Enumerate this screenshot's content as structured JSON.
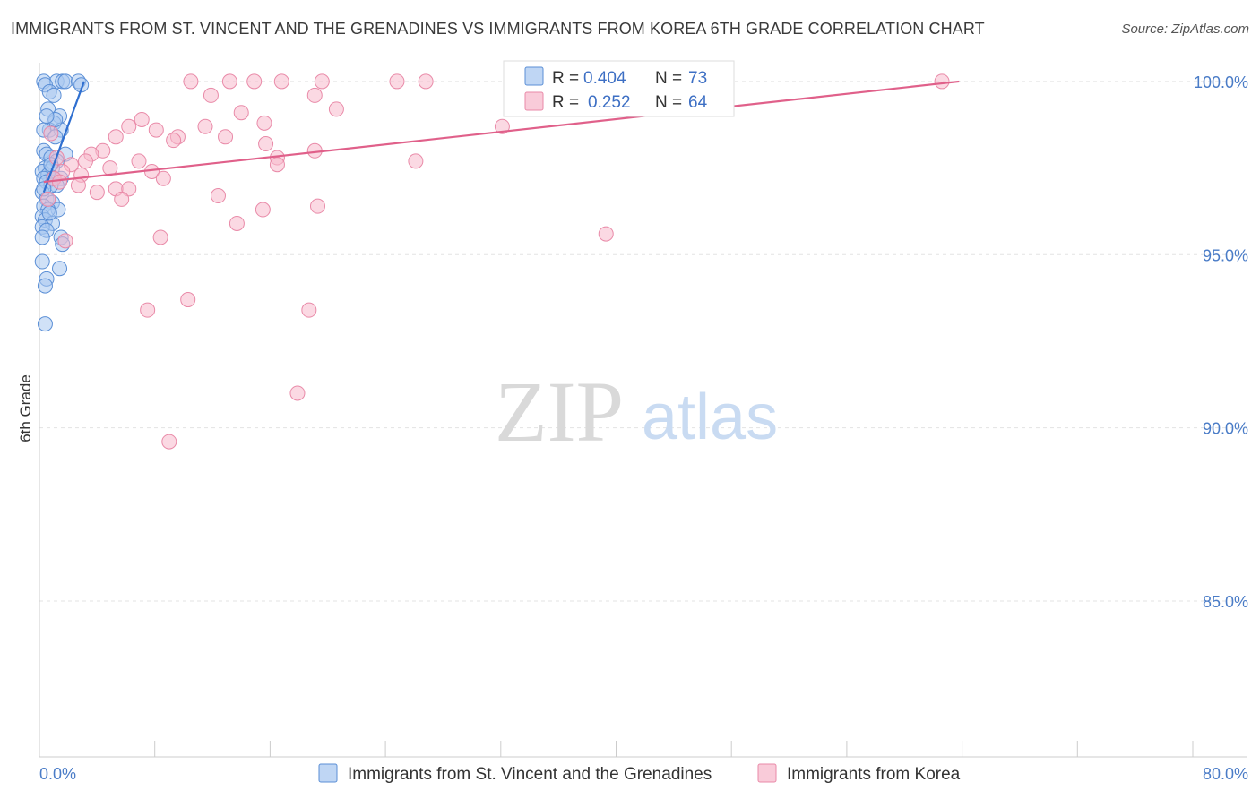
{
  "header": {
    "title": "IMMIGRANTS FROM ST. VINCENT AND THE GRENADINES VS IMMIGRANTS FROM KOREA 6TH GRADE CORRELATION CHART",
    "source": "Source: ZipAtlas.com"
  },
  "watermark": {
    "zip": "ZIP",
    "atlas": "atlas"
  },
  "colors": {
    "blue_fill": "#a9c8f0",
    "blue_stroke": "#5b8fd6",
    "blue_line": "#2f6fd0",
    "pink_fill": "#f7b9cc",
    "pink_stroke": "#e98aa8",
    "pink_line": "#e0608a",
    "grid": "#e3e3e3",
    "axis_text": "#4a7cc7"
  },
  "stats": {
    "blue": {
      "r_label": "R =",
      "r_value": "0.404",
      "n_label": "N =",
      "n_value": "73"
    },
    "pink": {
      "r_label": "R =",
      "r_value": "0.252",
      "n_label": "N =",
      "n_value": "64"
    }
  },
  "chart_data": {
    "type": "scatter",
    "title": "IMMIGRANTS FROM ST. VINCENT AND THE GRENADINES VS IMMIGRANTS FROM KOREA 6TH GRADE CORRELATION CHART",
    "xlabel": "",
    "ylabel": "6th Grade",
    "xlim": [
      0,
      80
    ],
    "ylim": [
      80.5,
      100.8
    ],
    "x_tick_labels": [
      "0.0%",
      "80.0%"
    ],
    "y_ticks": [
      85,
      90,
      95,
      100
    ],
    "y_tick_labels": [
      "85.0%",
      "90.0%",
      "95.0%",
      "100.0%"
    ],
    "grid": true,
    "legend_position": "bottom-center",
    "series": [
      {
        "name": "Immigrants from St. Vincent and the Grenadines",
        "color": "blue",
        "trend": {
          "x": [
            0.3,
            3.1
          ],
          "y": [
            96.8,
            100.0
          ]
        },
        "points": [
          [
            0.3,
            100
          ],
          [
            1.2,
            100
          ],
          [
            1.6,
            100
          ],
          [
            1.8,
            100
          ],
          [
            2.7,
            100
          ],
          [
            2.9,
            99.9
          ],
          [
            0.4,
            99.9
          ],
          [
            0.7,
            99.7
          ],
          [
            1.0,
            99.6
          ],
          [
            0.6,
            99.2
          ],
          [
            1.4,
            99.0
          ],
          [
            1.0,
            98.8
          ],
          [
            0.7,
            98.6
          ],
          [
            0.3,
            98.6
          ],
          [
            1.5,
            98.6
          ],
          [
            1.1,
            98.4
          ],
          [
            0.3,
            98.0
          ],
          [
            0.5,
            97.9
          ],
          [
            1.8,
            97.9
          ],
          [
            0.8,
            97.8
          ],
          [
            1.2,
            97.7
          ],
          [
            0.4,
            97.5
          ],
          [
            0.2,
            97.4
          ],
          [
            0.9,
            97.5
          ],
          [
            0.6,
            97.3
          ],
          [
            1.5,
            97.2
          ],
          [
            0.3,
            97.2
          ],
          [
            0.5,
            97.1
          ],
          [
            1.2,
            97.0
          ],
          [
            0.8,
            97.0
          ],
          [
            0.2,
            96.8
          ],
          [
            0.5,
            96.6
          ],
          [
            0.9,
            96.5
          ],
          [
            0.3,
            96.4
          ],
          [
            1.3,
            96.3
          ],
          [
            0.6,
            96.3
          ],
          [
            0.2,
            96.1
          ],
          [
            0.4,
            96.0
          ],
          [
            0.9,
            95.9
          ],
          [
            0.2,
            95.8
          ],
          [
            0.5,
            95.7
          ],
          [
            0.2,
            95.5
          ],
          [
            1.5,
            95.5
          ],
          [
            1.6,
            95.3
          ],
          [
            0.2,
            94.8
          ],
          [
            1.4,
            94.6
          ],
          [
            0.5,
            94.3
          ],
          [
            0.4,
            94.1
          ],
          [
            0.4,
            93.0
          ],
          [
            0.8,
            97.6
          ],
          [
            1.0,
            97.2
          ],
          [
            0.3,
            96.9
          ],
          [
            0.7,
            96.2
          ],
          [
            1.1,
            98.9
          ],
          [
            0.5,
            99.0
          ]
        ]
      },
      {
        "name": "Immigrants from Korea",
        "color": "pink",
        "trend": {
          "x": [
            0.3,
            63.8
          ],
          "y": [
            97.1,
            100.0
          ]
        },
        "points": [
          [
            10.5,
            100
          ],
          [
            13.2,
            100
          ],
          [
            14.9,
            100
          ],
          [
            16.8,
            100
          ],
          [
            19.6,
            100
          ],
          [
            24.8,
            100
          ],
          [
            26.8,
            100
          ],
          [
            62.6,
            100
          ],
          [
            11.9,
            99.6
          ],
          [
            19.1,
            99.6
          ],
          [
            20.6,
            99.2
          ],
          [
            14.0,
            99.1
          ],
          [
            7.1,
            98.9
          ],
          [
            15.6,
            98.8
          ],
          [
            11.5,
            98.7
          ],
          [
            6.2,
            98.7
          ],
          [
            32.1,
            98.7
          ],
          [
            8.1,
            98.6
          ],
          [
            9.6,
            98.4
          ],
          [
            5.3,
            98.4
          ],
          [
            12.9,
            98.4
          ],
          [
            9.3,
            98.3
          ],
          [
            15.7,
            98.2
          ],
          [
            19.1,
            98.0
          ],
          [
            4.4,
            98.0
          ],
          [
            3.6,
            97.9
          ],
          [
            3.2,
            97.7
          ],
          [
            16.5,
            97.8
          ],
          [
            16.5,
            97.6
          ],
          [
            6.9,
            97.7
          ],
          [
            26.1,
            97.7
          ],
          [
            2.2,
            97.6
          ],
          [
            4.9,
            97.5
          ],
          [
            7.8,
            97.4
          ],
          [
            1.6,
            97.4
          ],
          [
            2.9,
            97.3
          ],
          [
            1.0,
            97.2
          ],
          [
            8.6,
            97.2
          ],
          [
            1.4,
            97.1
          ],
          [
            2.7,
            97.0
          ],
          [
            5.3,
            96.9
          ],
          [
            6.2,
            96.9
          ],
          [
            4.0,
            96.8
          ],
          [
            12.4,
            96.7
          ],
          [
            5.7,
            96.6
          ],
          [
            0.6,
            96.6
          ],
          [
            19.3,
            96.4
          ],
          [
            15.5,
            96.3
          ],
          [
            13.7,
            95.9
          ],
          [
            39.3,
            95.6
          ],
          [
            8.4,
            95.5
          ],
          [
            1.8,
            95.4
          ],
          [
            10.3,
            93.7
          ],
          [
            7.5,
            93.4
          ],
          [
            18.7,
            93.4
          ],
          [
            17.9,
            91.0
          ],
          [
            9.0,
            89.6
          ],
          [
            0.8,
            98.5
          ],
          [
            1.2,
            97.8
          ]
        ]
      }
    ]
  },
  "legend": {
    "items": [
      {
        "label": "Immigrants from St. Vincent and the Grenadines"
      },
      {
        "label": "Immigrants from Korea"
      }
    ]
  }
}
